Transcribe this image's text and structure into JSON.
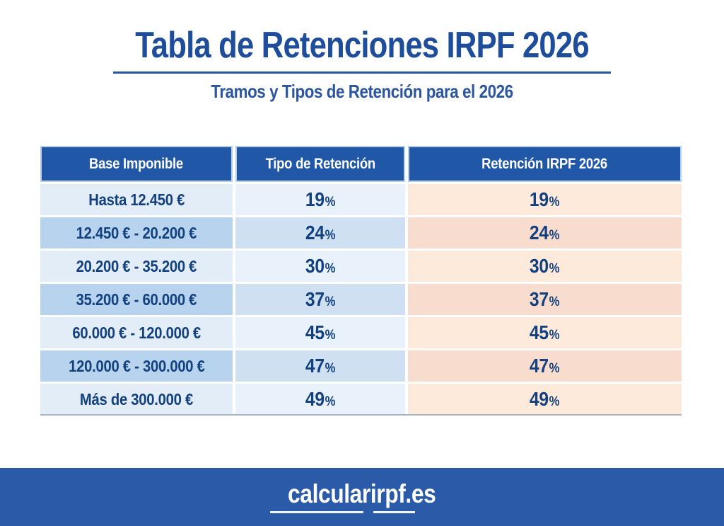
{
  "header": {
    "title": "Tabla de Retenciones IRPF 2026",
    "subtitle": "Tramos y Tipos de Retención para el 2026"
  },
  "table": {
    "columns": [
      "Base Imponible",
      "Tipo de Retención",
      "Retención IRPF 2026"
    ],
    "rows": [
      {
        "base": "Hasta 12.450 €",
        "tipo": "19",
        "retencion": "19"
      },
      {
        "base": "12.450 € - 20.200 €",
        "tipo": "24",
        "retencion": "24"
      },
      {
        "base": "20.200 € - 35.200 €",
        "tipo": "30",
        "retencion": "30"
      },
      {
        "base": "35.200 € - 60.000 €",
        "tipo": "37",
        "retencion": "37"
      },
      {
        "base": "60.000 € - 120.000 €",
        "tipo": "45",
        "retencion": "45"
      },
      {
        "base": "120.000 € - 300.000 €",
        "tipo": "47",
        "retencion": "47"
      },
      {
        "base": "Más de 300.000 €",
        "tipo": "49",
        "retencion": "49"
      }
    ]
  },
  "labels": {
    "percent_sign": "%"
  },
  "footer": {
    "site": "calcularirpf.es"
  },
  "colors": {
    "title_blue": "#1d4d9b",
    "header_blue": "#2057a7",
    "navy_text": "#13417f",
    "row_blue_light": "#e3edf8",
    "row_blue_dark": "#b7d3ed",
    "row_peach_light": "#fdeadb",
    "row_peach_dark": "#f8dccd",
    "footer_blue": "#2b5aa8"
  },
  "chart_data": {
    "type": "table",
    "title": "Tabla de Retenciones IRPF 2026",
    "subtitle": "Tramos y Tipos de Retención para el 2026",
    "columns": [
      "Base Imponible",
      "Tipo de Retención",
      "Retención IRPF 2026"
    ],
    "rows": [
      [
        "Hasta 12.450 €",
        "19%",
        "19%"
      ],
      [
        "12.450 € - 20.200 €",
        "24%",
        "24%"
      ],
      [
        "20.200 € - 35.200 €",
        "30%",
        "30%"
      ],
      [
        "35.200 € - 60.000 €",
        "37%",
        "37%"
      ],
      [
        "60.000 € - 120.000 €",
        "45%",
        "45%"
      ],
      [
        "120.000 € - 300.000 €",
        "47%",
        "47%"
      ],
      [
        "Más de 300.000 €",
        "49%",
        "49%"
      ]
    ]
  }
}
